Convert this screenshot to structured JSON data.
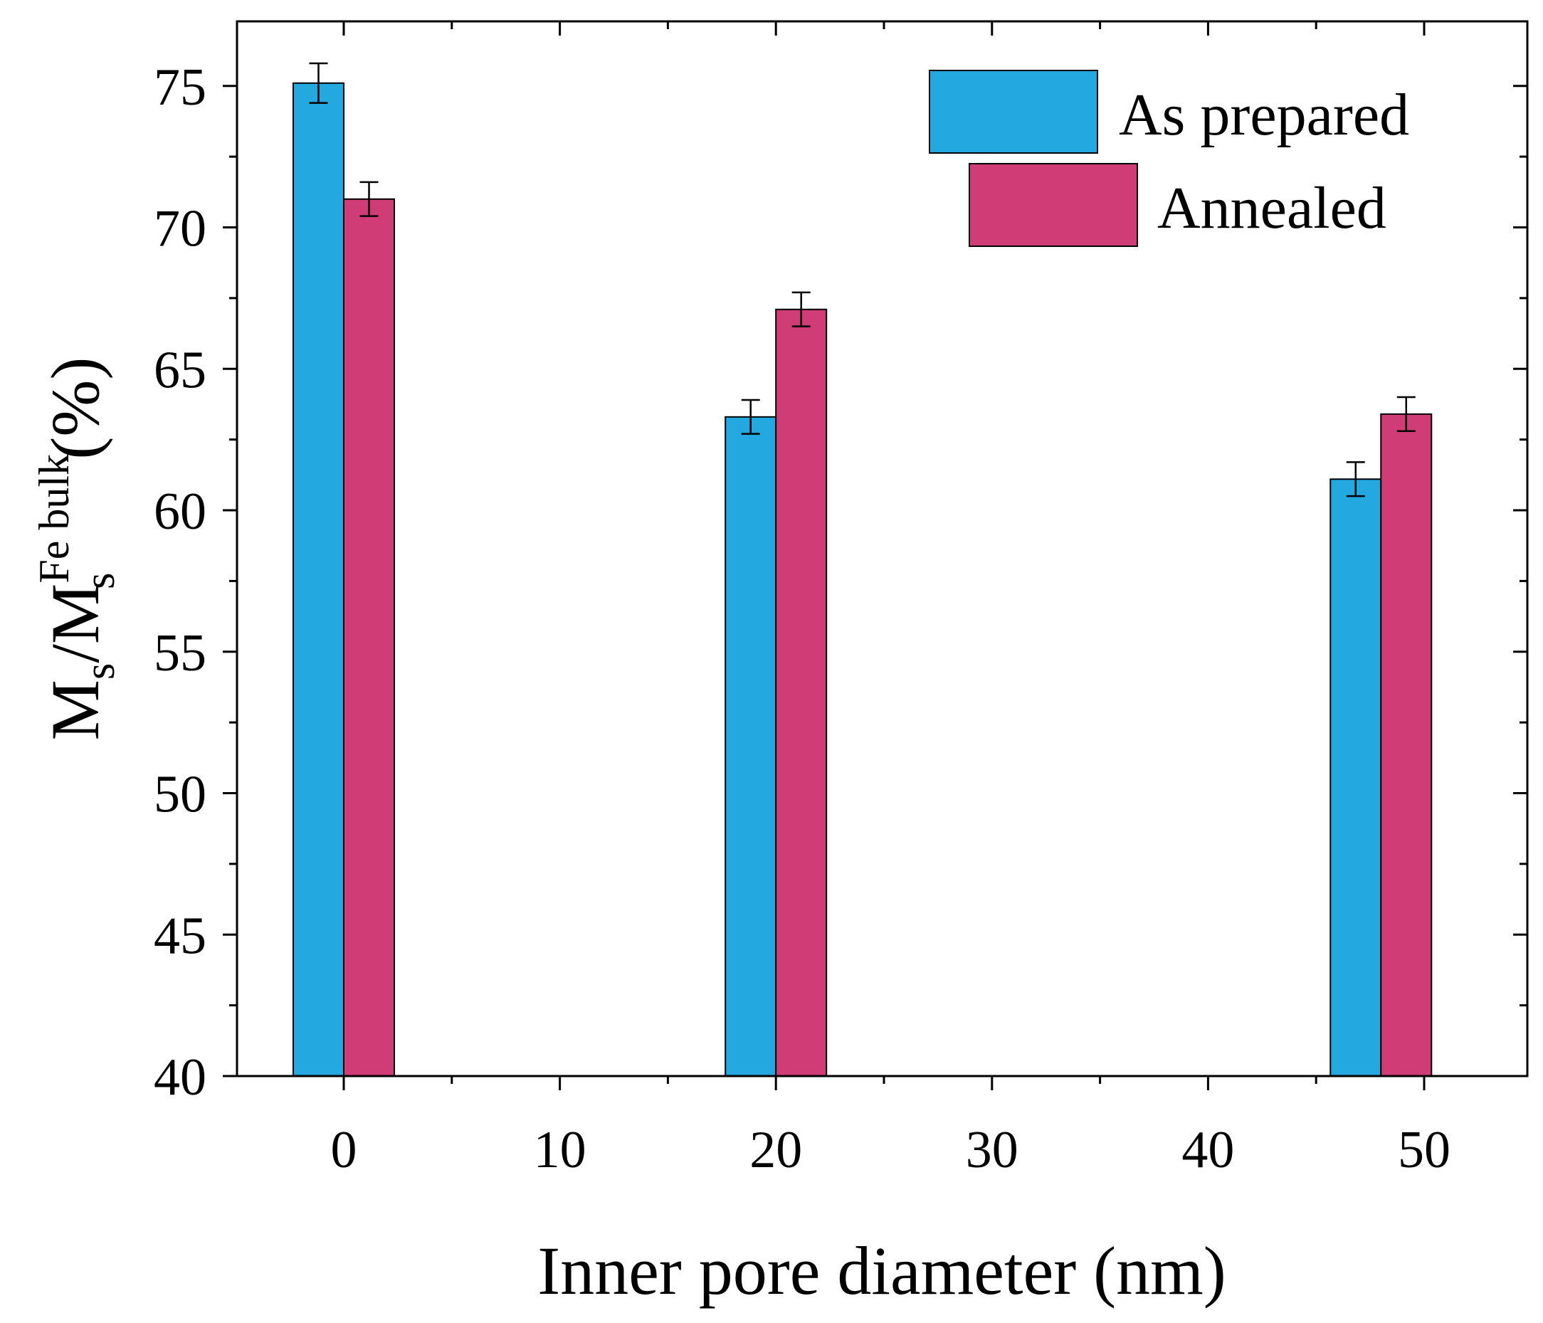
{
  "chart_data": {
    "type": "bar",
    "xlabel": "Inner pore diameter (nm)",
    "ylabel": {
      "base": "M",
      "sub1": "s",
      "slash": "/M",
      "sup": "Fe bulk",
      "sub2": "s",
      "unit": " (%)"
    },
    "xlim": [
      -5,
      55
    ],
    "ylim": [
      40,
      77
    ],
    "x_ticks": [
      0,
      10,
      20,
      30,
      40,
      50
    ],
    "x_tick_labels": [
      "0",
      "10",
      "20",
      "30",
      "40",
      "50"
    ],
    "y_ticks": [
      40,
      45,
      50,
      55,
      60,
      65,
      70,
      75
    ],
    "y_tick_labels": [
      "40",
      "45",
      "50",
      "55",
      "60",
      "65",
      "70",
      "75"
    ],
    "categories": [
      0,
      20,
      48
    ],
    "series": [
      {
        "name": "As prepared",
        "color": "#24a8e0",
        "values": [
          75.1,
          63.3,
          61.1
        ],
        "errors": [
          0.7,
          0.6,
          0.6
        ]
      },
      {
        "name": "Annealed",
        "color": "#cf3c76",
        "values": [
          71.0,
          67.1,
          63.4
        ],
        "errors": [
          0.6,
          0.6,
          0.6
        ]
      }
    ],
    "legend_position": "top-right",
    "grid": false
  }
}
